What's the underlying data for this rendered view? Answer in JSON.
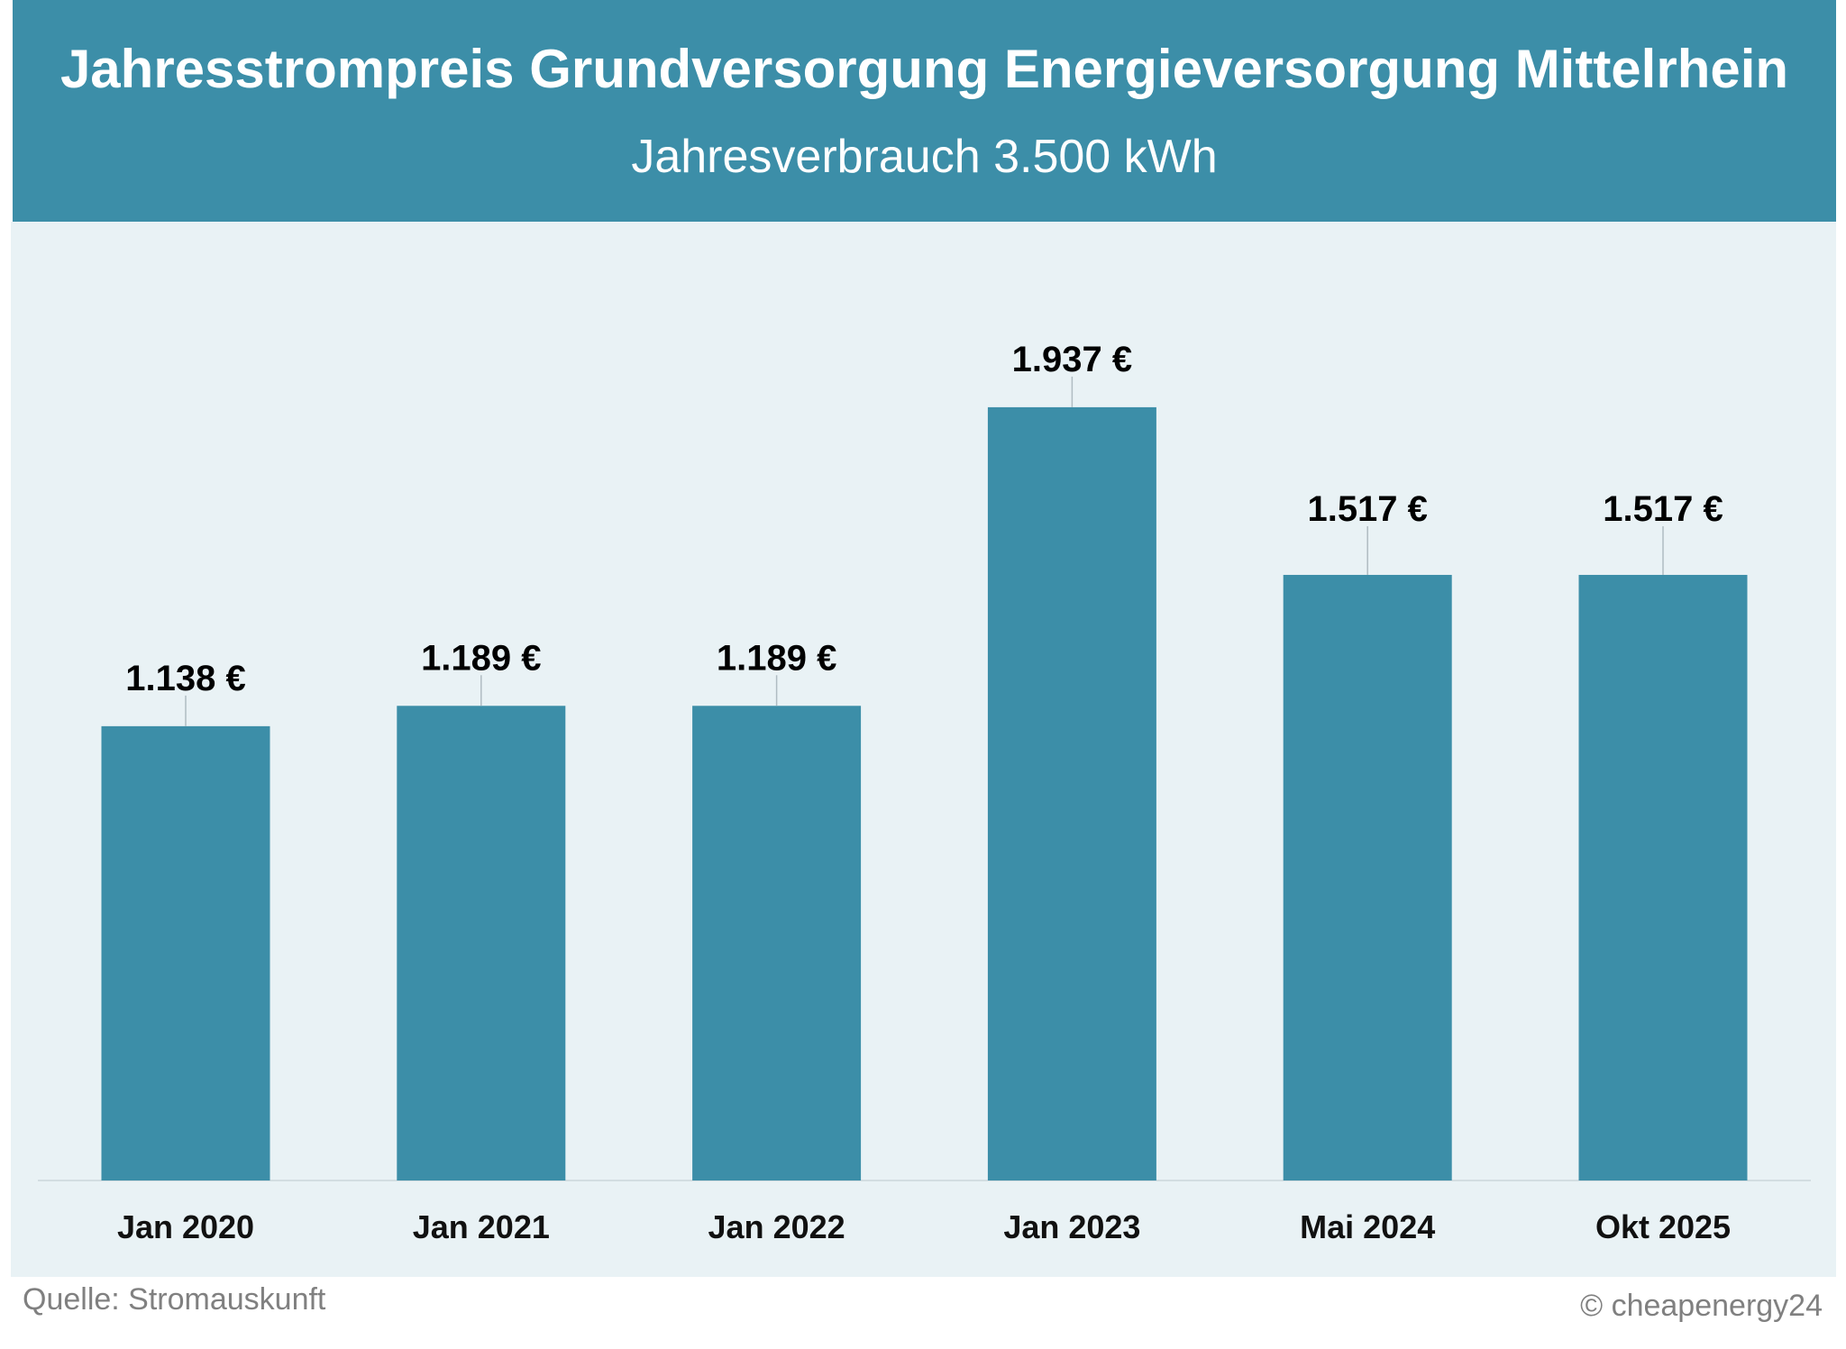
{
  "chart_data": {
    "type": "bar",
    "title": "Jahresstrompreis Grundversorgung Energieversorgung Mittelrhein",
    "subtitle": "Jahresverbrauch 3.500 kWh",
    "categories": [
      "Jan 2020",
      "Jan 2021",
      "Jan 2022",
      "Jan 2023",
      "Mai 2024",
      "Okt 2025"
    ],
    "values": [
      1138,
      1189,
      1189,
      1937,
      1517,
      1517
    ],
    "data_labels": [
      "1.138 €",
      "1.189 €",
      "1.189 €",
      "1.937 €",
      "1.517 €",
      "1.517 €"
    ],
    "unit": "€",
    "ylim": [
      0,
      2500
    ],
    "grid": false,
    "colors": {
      "bar": "#3c8ea8",
      "header": "#3c8ea8",
      "background": "#e9f2f5"
    }
  },
  "footer": {
    "source": "Quelle: Stromauskunft",
    "copyright": "© cheapenergy24"
  }
}
